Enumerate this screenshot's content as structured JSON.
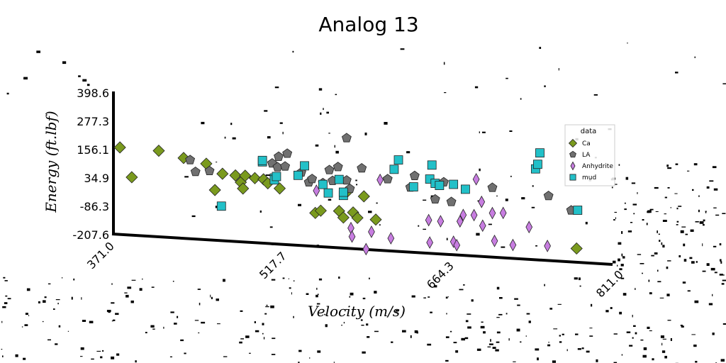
{
  "chart_data": {
    "type": "scatter",
    "title": "Analog 13",
    "xlabel": "Velocity (m/s)",
    "ylabel": "Energy (ft.lbf)",
    "xlim": [
      371.0,
      811.0
    ],
    "ylim": [
      -207.6,
      398.6
    ],
    "x_ticks": [
      "371.0",
      "517.7",
      "664.3",
      "811.0"
    ],
    "y_ticks": [
      "398.6",
      "277.3",
      "156.1",
      "34.9",
      "-86.3",
      "-207.6"
    ],
    "legend": {
      "title": "data",
      "placement": "right"
    },
    "series": [
      {
        "name": "Ca",
        "marker": "diamond",
        "color": "#7a9a1e",
        "points": [
          [
            377,
            162
          ],
          [
            388,
            38
          ],
          [
            413,
            157
          ],
          [
            436,
            132
          ],
          [
            457,
            113
          ],
          [
            465,
            3
          ],
          [
            472,
            74
          ],
          [
            484,
            70
          ],
          [
            489,
            42
          ],
          [
            491,
            16
          ],
          [
            493,
            71
          ],
          [
            502,
            63
          ],
          [
            510,
            60
          ],
          [
            514,
            44
          ],
          [
            525,
            25
          ],
          [
            558,
            -71
          ],
          [
            563,
            -60
          ],
          [
            580,
            -57
          ],
          [
            584,
            -84
          ],
          [
            587,
            24
          ],
          [
            593,
            -60
          ],
          [
            597,
            -82
          ],
          [
            603,
            11
          ],
          [
            614,
            -85
          ],
          [
            800,
            -161
          ]
        ]
      },
      {
        "name": "LA",
        "marker": "pentagon",
        "color": "#707070",
        "points": [
          [
            442,
            125
          ],
          [
            447,
            76
          ],
          [
            460,
            83
          ],
          [
            518,
            130
          ],
          [
            523,
            115
          ],
          [
            524,
            160
          ],
          [
            530,
            120
          ],
          [
            532,
            175
          ],
          [
            545,
            98
          ],
          [
            552,
            58
          ],
          [
            555,
            73
          ],
          [
            565,
            58
          ],
          [
            571,
            115
          ],
          [
            574,
            70
          ],
          [
            579,
            130
          ],
          [
            587,
            255
          ],
          [
            587,
            75
          ],
          [
            590,
            40
          ],
          [
            601,
            130
          ],
          [
            625,
            90
          ],
          [
            646,
            60
          ],
          [
            650,
            110
          ],
          [
            669,
            15
          ],
          [
            677,
            90
          ],
          [
            684,
            8
          ],
          [
            722,
            78
          ],
          [
            774,
            56
          ],
          [
            795,
            0
          ]
        ]
      },
      {
        "name": "Anhydrite",
        "marker": "thin-diamond",
        "color": "#c77de0",
        "points": [
          [
            559,
            24
          ],
          [
            591,
            -127
          ],
          [
            592,
            -163
          ],
          [
            605,
            -213
          ],
          [
            610,
            -138
          ],
          [
            618,
            85
          ],
          [
            628,
            -161
          ],
          [
            663,
            -75
          ],
          [
            664,
            -170
          ],
          [
            674,
            -77
          ],
          [
            686,
            -161
          ],
          [
            689,
            -175
          ],
          [
            692,
            -73
          ],
          [
            695,
            -45
          ],
          [
            705,
            -43
          ],
          [
            707,
            110
          ],
          [
            712,
            15
          ],
          [
            713,
            -86
          ],
          [
            722,
            -30
          ],
          [
            724,
            -148
          ],
          [
            732,
            -27
          ],
          [
            741,
            -161
          ],
          [
            756,
            -81
          ],
          [
            773,
            -157
          ]
        ]
      },
      {
        "name": "mud",
        "marker": "square",
        "color": "#22c0c8",
        "points": [
          [
            471,
            -64
          ],
          [
            509,
            134
          ],
          [
            509,
            140
          ],
          [
            520,
            68
          ],
          [
            520,
            60
          ],
          [
            522,
            75
          ],
          [
            542,
            85
          ],
          [
            548,
            127
          ],
          [
            565,
            52
          ],
          [
            570,
            17
          ],
          [
            580,
            77
          ],
          [
            584,
            10
          ],
          [
            584,
            24
          ],
          [
            631,
            133
          ],
          [
            635,
            174
          ],
          [
            649,
            63
          ],
          [
            664,
            100
          ],
          [
            666,
            160
          ],
          [
            669,
            83
          ],
          [
            673,
            75
          ],
          [
            686,
            83
          ],
          [
            697,
            65
          ],
          [
            762,
            168
          ],
          [
            764,
            188
          ],
          [
            766,
            237
          ],
          [
            801,
            2
          ]
        ]
      }
    ]
  },
  "colors": {
    "axis": "#000000",
    "background": "#ffffff",
    "legend_border": "#cccccc"
  }
}
